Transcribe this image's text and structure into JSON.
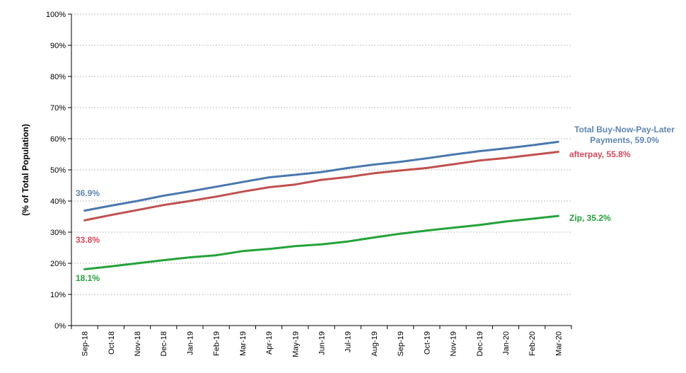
{
  "chart_data": {
    "type": "line",
    "ylabel": "(% of Total Population)",
    "xlabel": "",
    "title": "",
    "ylim": [
      0,
      100
    ],
    "y_ticks": [
      "0%",
      "10%",
      "20%",
      "30%",
      "40%",
      "50%",
      "60%",
      "70%",
      "80%",
      "90%",
      "100%"
    ],
    "grid": "horizontal",
    "categories": [
      "Sep-18",
      "Oct-18",
      "Nov-18",
      "Dec-18",
      "Jan-19",
      "Feb-19",
      "Mar-19",
      "Apr-19",
      "May-19",
      "Jun-19",
      "Jul-19",
      "Aug-19",
      "Sep-19",
      "Oct-19",
      "Nov-19",
      "Dec-19",
      "Jan-20",
      "Feb-20",
      "Mar-20"
    ],
    "series": [
      {
        "name": "Total Buy-Now-Pay-Later Payments",
        "color": "#4a78b0",
        "values": [
          36.9,
          38.5,
          40.0,
          41.7,
          43.1,
          44.6,
          46.1,
          47.6,
          48.4,
          49.3,
          50.6,
          51.7,
          52.6,
          53.7,
          54.9,
          56.0,
          56.9,
          57.9,
          59.0
        ],
        "start_label": "36.9%",
        "end_label_line1": "Total Buy-Now-Pay-Later",
        "end_label_line2": "Payments, 59.0%"
      },
      {
        "name": "afterpay",
        "color": "#c0504d",
        "values": [
          33.8,
          35.5,
          37.1,
          38.7,
          40.0,
          41.4,
          43.0,
          44.4,
          45.3,
          46.8,
          47.7,
          48.9,
          49.8,
          50.6,
          51.8,
          53.0,
          53.8,
          54.8,
          55.8
        ],
        "end_label": "afterpay, 55.8%",
        "start_label": "33.8%"
      },
      {
        "name": "Zip",
        "color": "#22a339",
        "values": [
          18.1,
          19.0,
          20.0,
          21.0,
          21.9,
          22.6,
          23.9,
          24.6,
          25.5,
          26.1,
          27.0,
          28.3,
          29.5,
          30.5,
          31.4,
          32.3,
          33.4,
          34.3,
          35.2
        ],
        "end_label": "Zip, 35.2%",
        "start_label": "18.1%"
      }
    ]
  }
}
